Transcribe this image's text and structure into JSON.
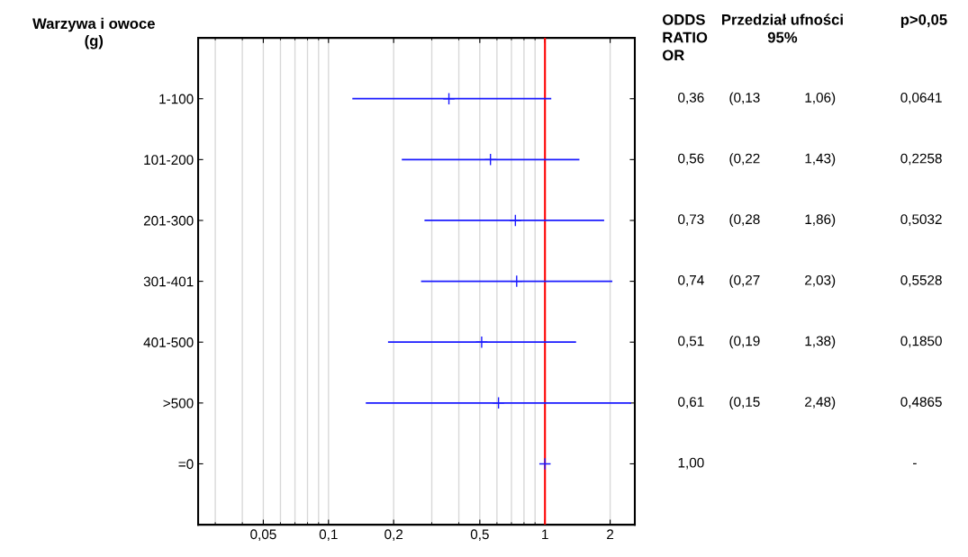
{
  "chart_data": {
    "type": "scatter",
    "orientation": "horizontal",
    "ylabel": "Warzywa i owoce\n(g)",
    "categories": [
      "1-100",
      "101-200",
      "201-300",
      "301-401",
      "401-500",
      ">500",
      "=0"
    ],
    "series": [
      {
        "color": "#1a1aff",
        "values": [
          0.36,
          0.56,
          0.73,
          0.74,
          0.51,
          0.61,
          1.0
        ],
        "errors": [
          [
            0.13,
            1.06
          ],
          [
            0.22,
            1.43
          ],
          [
            0.28,
            1.86
          ],
          [
            0.27,
            2.03
          ],
          [
            0.19,
            1.38
          ],
          [
            0.15,
            2.48
          ],
          null
        ],
        "value_labels": [
          "0,36",
          "0,56",
          "0,73",
          "0,74",
          "0,51",
          "0,61",
          "1,00"
        ]
      }
    ],
    "marker": "cross",
    "log": "x",
    "grid": "x",
    "xlim": [
      0.025,
      2.6
    ],
    "xticks": [
      {
        "value": 0.05,
        "label": "0,05"
      },
      {
        "value": 0.1,
        "label": "0,1"
      },
      {
        "value": 0.2,
        "label": "0,2"
      },
      {
        "value": 0.5,
        "label": "0,5"
      },
      {
        "value": 1,
        "label": "1"
      },
      {
        "value": 2,
        "label": "2"
      }
    ],
    "ref_lines": [
      {
        "axis": "x",
        "value": 1,
        "color": "#ff0000"
      }
    ],
    "annotations": [
      "ODDS\nRATIO\nOR",
      "Przedział ufności\n95%",
      "p>0,05",
      "(0,13",
      "1,06)",
      "0,0641",
      "(0,22",
      "1,43)",
      "0,2258",
      "(0,28",
      "1,86)",
      "0,5032",
      "(0,27",
      "2,03)",
      "0,5528",
      "(0,19",
      "1,38)",
      "0,1850",
      "(0,15",
      "2,48)",
      "0,4865",
      "-"
    ]
  }
}
